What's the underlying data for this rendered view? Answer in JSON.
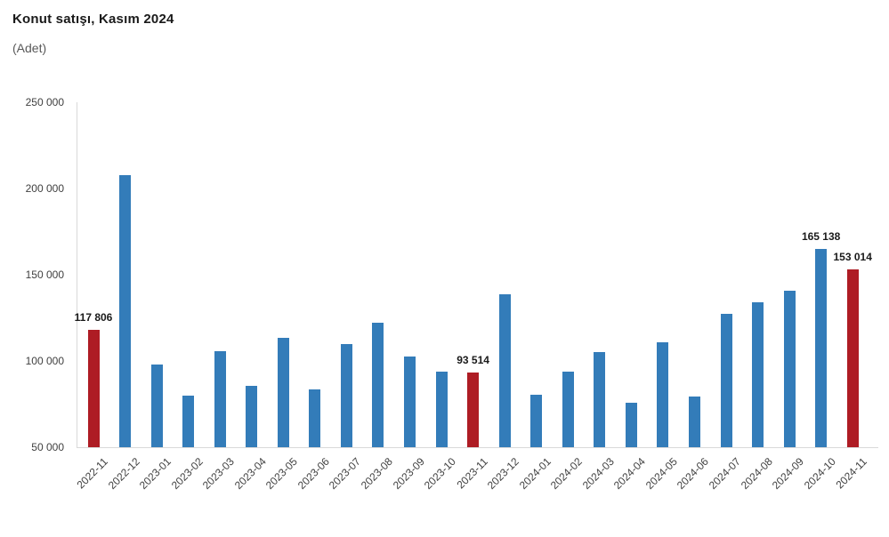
{
  "title": "Konut satışı, Kasım 2024",
  "subtitle": "(Adet)",
  "chart_data": {
    "type": "bar",
    "title": "Konut satışı, Kasım 2024",
    "unit_label": "(Adet)",
    "categories": [
      "2022-11",
      "2022-12",
      "2023-01",
      "2023-02",
      "2023-03",
      "2023-04",
      "2023-05",
      "2023-06",
      "2023-07",
      "2023-08",
      "2023-09",
      "2023-10",
      "2023-11",
      "2023-12",
      "2024-01",
      "2024-02",
      "2024-03",
      "2024-04",
      "2024-05",
      "2024-06",
      "2024-07",
      "2024-08",
      "2024-09",
      "2024-10",
      "2024-11"
    ],
    "values": [
      117806,
      207963,
      97708,
      80031,
      105476,
      85652,
      113207,
      83636,
      109548,
      122091,
      102656,
      93761,
      93514,
      138577,
      80308,
      93902,
      105394,
      75569,
      110588,
      79313,
      127088,
      134155,
      140919,
      165138,
      153014
    ],
    "data_labels": {
      "0": "117 806",
      "12": "93 514",
      "23": "165 138",
      "24": "153 014"
    },
    "highlight_indices": [
      0,
      12,
      24
    ],
    "colors": {
      "bar": "#337CB9",
      "highlight": "#AE1C24",
      "axis_line": "#D9D9D9",
      "axis_text": "#404040",
      "value_label_text": "#1a1a1a"
    },
    "y_axis": {
      "min": 50000,
      "max": 250000,
      "tick_step": 50000,
      "ticks": [
        {
          "value": 50000,
          "label": "50 000"
        },
        {
          "value": 100000,
          "label": "100 000"
        },
        {
          "value": 150000,
          "label": "150 000"
        },
        {
          "value": 200000,
          "label": "200 000"
        },
        {
          "value": 250000,
          "label": "250 000"
        }
      ]
    },
    "x_axis": {
      "label_rotation_deg": -45
    },
    "grid": false,
    "legend": "none"
  }
}
